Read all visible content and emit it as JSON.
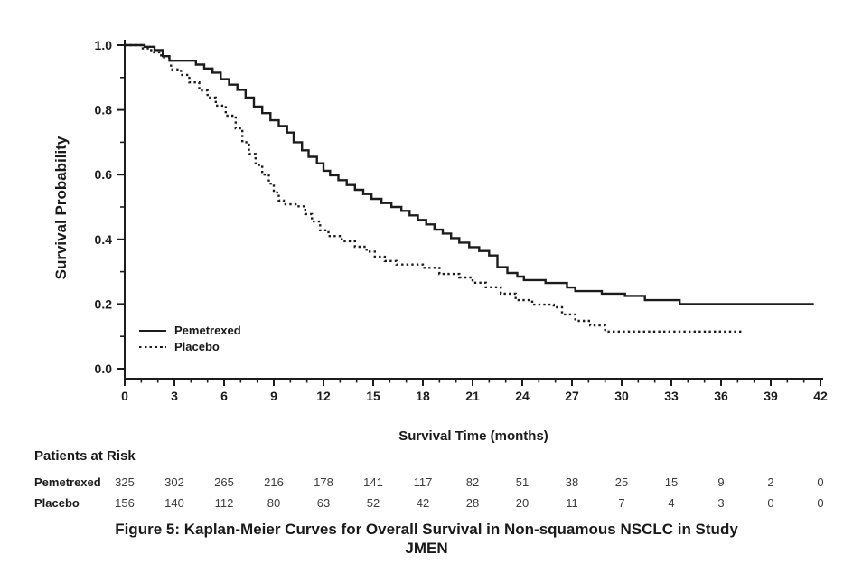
{
  "figure": {
    "caption_line1": "Figure 5: Kaplan-Meier Curves for Overall Survival in Non-squamous NSCLC in Study",
    "caption_line2": "JMEN"
  },
  "chart_data": {
    "type": "line",
    "subtype": "kaplan-meier-step",
    "title": "",
    "xlabel": "Survival Time (months)",
    "ylabel": "Survival Probability",
    "xlim": [
      0,
      42
    ],
    "ylim": [
      0.0,
      1.0
    ],
    "x_major_ticks": [
      0,
      3,
      6,
      9,
      12,
      15,
      18,
      21,
      24,
      27,
      30,
      33,
      36,
      39,
      42
    ],
    "x_minor_step": 1,
    "y_major_ticks": [
      0.0,
      0.2,
      0.4,
      0.6,
      0.8,
      1.0
    ],
    "y_minor_step": 0.1,
    "grid": false,
    "line_color": "#1c1c1c",
    "legend_position": "inside-lower-left",
    "series": [
      {
        "name": "Pemetrexed",
        "style": "solid",
        "points": [
          [
            0,
            1.0
          ],
          [
            1.2,
            0.995
          ],
          [
            1.8,
            0.985
          ],
          [
            2.3,
            0.966
          ],
          [
            2.7,
            0.952
          ],
          [
            4.3,
            0.94
          ],
          [
            4.8,
            0.928
          ],
          [
            5.3,
            0.915
          ],
          [
            5.8,
            0.895
          ],
          [
            6.3,
            0.878
          ],
          [
            6.8,
            0.862
          ],
          [
            7.3,
            0.838
          ],
          [
            7.8,
            0.81
          ],
          [
            8.3,
            0.79
          ],
          [
            8.8,
            0.768
          ],
          [
            9.3,
            0.75
          ],
          [
            9.8,
            0.73
          ],
          [
            10.2,
            0.7
          ],
          [
            10.7,
            0.675
          ],
          [
            11.1,
            0.655
          ],
          [
            11.6,
            0.635
          ],
          [
            12.0,
            0.612
          ],
          [
            12.4,
            0.598
          ],
          [
            12.9,
            0.583
          ],
          [
            13.4,
            0.568
          ],
          [
            13.9,
            0.553
          ],
          [
            14.4,
            0.54
          ],
          [
            14.9,
            0.525
          ],
          [
            15.5,
            0.512
          ],
          [
            16.1,
            0.5
          ],
          [
            16.7,
            0.488
          ],
          [
            17.2,
            0.474
          ],
          [
            17.7,
            0.46
          ],
          [
            18.2,
            0.446
          ],
          [
            18.7,
            0.43
          ],
          [
            19.2,
            0.418
          ],
          [
            19.7,
            0.404
          ],
          [
            20.2,
            0.39
          ],
          [
            20.8,
            0.376
          ],
          [
            21.4,
            0.364
          ],
          [
            22.0,
            0.35
          ],
          [
            22.5,
            0.314
          ],
          [
            23.1,
            0.296
          ],
          [
            23.7,
            0.285
          ],
          [
            24.1,
            0.274
          ],
          [
            25.4,
            0.265
          ],
          [
            26.7,
            0.251
          ],
          [
            27.2,
            0.24
          ],
          [
            28.8,
            0.232
          ],
          [
            30.2,
            0.225
          ],
          [
            31.4,
            0.212
          ],
          [
            33.5,
            0.2
          ],
          [
            41.6,
            0.2
          ]
        ]
      },
      {
        "name": "Placebo",
        "style": "dotted",
        "points": [
          [
            0,
            1.0
          ],
          [
            1.0,
            0.99
          ],
          [
            1.6,
            0.978
          ],
          [
            2.2,
            0.962
          ],
          [
            2.8,
            0.925
          ],
          [
            3.4,
            0.908
          ],
          [
            3.9,
            0.885
          ],
          [
            4.5,
            0.86
          ],
          [
            5.0,
            0.838
          ],
          [
            5.5,
            0.813
          ],
          [
            6.1,
            0.782
          ],
          [
            6.7,
            0.743
          ],
          [
            7.1,
            0.7
          ],
          [
            7.5,
            0.664
          ],
          [
            7.9,
            0.63
          ],
          [
            8.3,
            0.6
          ],
          [
            8.7,
            0.572
          ],
          [
            9.0,
            0.545
          ],
          [
            9.3,
            0.52
          ],
          [
            9.6,
            0.508
          ],
          [
            10.5,
            0.502
          ],
          [
            10.9,
            0.478
          ],
          [
            11.3,
            0.455
          ],
          [
            11.8,
            0.428
          ],
          [
            12.3,
            0.41
          ],
          [
            13.1,
            0.394
          ],
          [
            13.9,
            0.377
          ],
          [
            14.6,
            0.362
          ],
          [
            15.1,
            0.346
          ],
          [
            15.7,
            0.333
          ],
          [
            16.4,
            0.322
          ],
          [
            18.0,
            0.312
          ],
          [
            19.0,
            0.293
          ],
          [
            20.2,
            0.282
          ],
          [
            21.0,
            0.266
          ],
          [
            21.8,
            0.252
          ],
          [
            22.7,
            0.232
          ],
          [
            23.6,
            0.212
          ],
          [
            24.6,
            0.198
          ],
          [
            25.9,
            0.19
          ],
          [
            26.4,
            0.168
          ],
          [
            27.2,
            0.148
          ],
          [
            28.1,
            0.134
          ],
          [
            29.0,
            0.115
          ],
          [
            37.3,
            0.115
          ]
        ]
      }
    ]
  },
  "at_risk": {
    "heading": "Patients at Risk",
    "time_points": [
      0,
      3,
      6,
      9,
      12,
      15,
      18,
      21,
      24,
      27,
      30,
      33,
      36,
      39,
      42
    ],
    "rows": [
      {
        "label": "Pemetrexed",
        "counts": [
          325,
          302,
          265,
          216,
          178,
          141,
          117,
          82,
          51,
          38,
          25,
          15,
          9,
          2,
          0
        ]
      },
      {
        "label": "Placebo",
        "counts": [
          156,
          140,
          112,
          80,
          63,
          52,
          42,
          28,
          20,
          11,
          7,
          4,
          3,
          0,
          0
        ]
      }
    ]
  }
}
